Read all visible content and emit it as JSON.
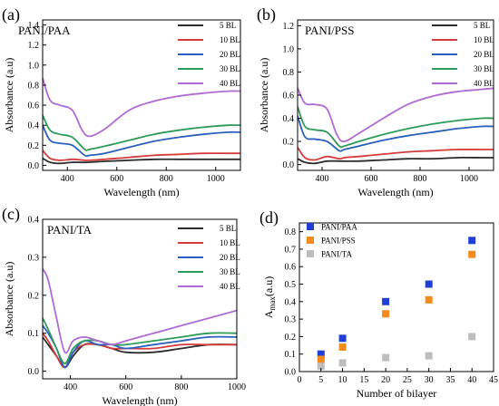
{
  "chart_data": [
    {
      "id": "a",
      "panel_label": "(a)",
      "title": "PANI/PAA",
      "type": "line",
      "xlabel": "Wavelength (nm)",
      "ylabel": "Absorbance (a.u)",
      "xlim": [
        300,
        1100
      ],
      "ylim": [
        -0.05,
        1.45
      ],
      "xticks": [
        400,
        600,
        800,
        1000
      ],
      "yticks": [
        0.0,
        0.2,
        0.4,
        0.6,
        0.8,
        1.0,
        1.2,
        1.4
      ],
      "ytick_labels": [
        "0.0",
        "0.2",
        "0.4",
        "0.6",
        "0.8",
        "1.0",
        "1.2",
        "1.4"
      ],
      "legend_position": "top-right",
      "series": [
        {
          "name": "5 BL",
          "color": "#2b2b2b",
          "x": [
            300,
            330,
            370,
            420,
            480,
            550,
            650,
            750,
            850,
            950,
            1050,
            1100
          ],
          "y": [
            0.07,
            0.03,
            0.02,
            0.03,
            0.03,
            0.04,
            0.05,
            0.06,
            0.06,
            0.06,
            0.06,
            0.06
          ]
        },
        {
          "name": "10 BL",
          "color": "#d63b3b",
          "x": [
            300,
            330,
            370,
            420,
            470,
            490,
            550,
            650,
            750,
            850,
            950,
            1050,
            1100
          ],
          "y": [
            0.15,
            0.07,
            0.05,
            0.06,
            0.05,
            0.05,
            0.06,
            0.08,
            0.1,
            0.11,
            0.12,
            0.12,
            0.12
          ]
        },
        {
          "name": "20 BL",
          "color": "#2a5fbf",
          "x": [
            300,
            330,
            370,
            420,
            470,
            490,
            550,
            650,
            750,
            850,
            950,
            1050,
            1100
          ],
          "y": [
            0.4,
            0.25,
            0.22,
            0.2,
            0.1,
            0.1,
            0.12,
            0.18,
            0.24,
            0.28,
            0.31,
            0.33,
            0.33
          ]
        },
        {
          "name": "30 BL",
          "color": "#2e9a5a",
          "x": [
            300,
            330,
            370,
            420,
            470,
            490,
            550,
            650,
            750,
            850,
            950,
            1050,
            1100
          ],
          "y": [
            0.5,
            0.35,
            0.31,
            0.28,
            0.16,
            0.16,
            0.19,
            0.25,
            0.31,
            0.35,
            0.38,
            0.4,
            0.4
          ]
        },
        {
          "name": "40 BL",
          "color": "#b06ad6",
          "x": [
            300,
            330,
            370,
            420,
            460,
            490,
            550,
            650,
            750,
            850,
            950,
            1050,
            1100
          ],
          "y": [
            0.87,
            0.65,
            0.6,
            0.55,
            0.35,
            0.29,
            0.36,
            0.55,
            0.64,
            0.69,
            0.72,
            0.74,
            0.74
          ]
        }
      ]
    },
    {
      "id": "b",
      "panel_label": "(b)",
      "title": "PANI/PSS",
      "type": "line",
      "xlabel": "Wavelength (nm)",
      "ylabel": "Absorbance (a.u)",
      "xlim": [
        300,
        1100
      ],
      "ylim": [
        -0.05,
        1.25
      ],
      "xticks": [
        400,
        600,
        800,
        1000
      ],
      "yticks": [
        0.0,
        0.2,
        0.4,
        0.6,
        0.8,
        1.0,
        1.2
      ],
      "ytick_labels": [
        "0.0",
        "0.2",
        "0.4",
        "0.6",
        "0.8",
        "1.0",
        "1.2"
      ],
      "legend_position": "top-right",
      "series": [
        {
          "name": "5 BL",
          "color": "#2b2b2b",
          "x": [
            300,
            330,
            370,
            420,
            480,
            550,
            650,
            750,
            850,
            950,
            1050,
            1100
          ],
          "y": [
            0.05,
            0.02,
            0.01,
            0.03,
            0.03,
            0.03,
            0.04,
            0.05,
            0.05,
            0.06,
            0.06,
            0.06
          ]
        },
        {
          "name": "10 BL",
          "color": "#d63b3b",
          "x": [
            300,
            330,
            370,
            420,
            470,
            490,
            550,
            650,
            750,
            850,
            950,
            1050,
            1100
          ],
          "y": [
            0.15,
            0.06,
            0.04,
            0.07,
            0.05,
            0.06,
            0.07,
            0.09,
            0.11,
            0.12,
            0.13,
            0.13,
            0.13
          ]
        },
        {
          "name": "20 BL",
          "color": "#2a5fbf",
          "x": [
            300,
            330,
            370,
            420,
            470,
            490,
            550,
            650,
            750,
            850,
            950,
            1050,
            1100
          ],
          "y": [
            0.42,
            0.24,
            0.22,
            0.2,
            0.12,
            0.13,
            0.16,
            0.21,
            0.25,
            0.28,
            0.31,
            0.33,
            0.33
          ]
        },
        {
          "name": "30 BL",
          "color": "#2e9a5a",
          "x": [
            300,
            330,
            370,
            420,
            470,
            490,
            550,
            650,
            750,
            850,
            950,
            1050,
            1100
          ],
          "y": [
            0.5,
            0.33,
            0.3,
            0.28,
            0.16,
            0.16,
            0.2,
            0.26,
            0.31,
            0.35,
            0.38,
            0.4,
            0.4
          ]
        },
        {
          "name": "40 BL",
          "color": "#b06ad6",
          "x": [
            300,
            330,
            370,
            420,
            460,
            490,
            550,
            650,
            750,
            850,
            950,
            1050,
            1100
          ],
          "y": [
            0.66,
            0.53,
            0.52,
            0.48,
            0.26,
            0.2,
            0.27,
            0.4,
            0.52,
            0.59,
            0.63,
            0.65,
            0.66
          ]
        }
      ]
    },
    {
      "id": "c",
      "panel_label": "(c)",
      "title": "PANI/TA",
      "type": "line",
      "xlabel": "Wavelength (nm)",
      "ylabel": "Absorbance (a.u)",
      "xlim": [
        300,
        1000
      ],
      "ylim": [
        -0.02,
        0.4
      ],
      "xticks": [
        400,
        600,
        800,
        1000
      ],
      "yticks": [
        0.0,
        0.1,
        0.2,
        0.3,
        0.4
      ],
      "ytick_labels": [
        "0.0",
        "0.1",
        "0.2",
        "0.3",
        "0.4"
      ],
      "legend_position": "top-right",
      "series": [
        {
          "name": "5 BL",
          "color": "#2b2b2b",
          "x": [
            300,
            320,
            350,
            380,
            410,
            450,
            500,
            550,
            600,
            700,
            800,
            900,
            1000
          ],
          "y": [
            0.09,
            0.07,
            0.04,
            0.01,
            0.04,
            0.07,
            0.07,
            0.06,
            0.05,
            0.05,
            0.06,
            0.07,
            0.07
          ]
        },
        {
          "name": "10 BL",
          "color": "#d63b3b",
          "x": [
            300,
            320,
            350,
            380,
            410,
            450,
            500,
            550,
            600,
            700,
            800,
            900,
            1000
          ],
          "y": [
            0.1,
            0.08,
            0.04,
            0.01,
            0.05,
            0.07,
            0.07,
            0.06,
            0.06,
            0.06,
            0.07,
            0.07,
            0.07
          ]
        },
        {
          "name": "20 BL",
          "color": "#2a5fbf",
          "x": [
            300,
            320,
            350,
            380,
            410,
            450,
            500,
            550,
            600,
            700,
            800,
            900,
            1000
          ],
          "y": [
            0.12,
            0.1,
            0.06,
            0.01,
            0.05,
            0.08,
            0.07,
            0.07,
            0.06,
            0.07,
            0.08,
            0.09,
            0.09
          ]
        },
        {
          "name": "30 BL",
          "color": "#2e9a5a",
          "x": [
            300,
            320,
            350,
            380,
            410,
            450,
            500,
            550,
            600,
            700,
            800,
            900,
            1000
          ],
          "y": [
            0.14,
            0.11,
            0.06,
            0.02,
            0.06,
            0.08,
            0.08,
            0.07,
            0.07,
            0.08,
            0.09,
            0.1,
            0.1
          ]
        },
        {
          "name": "40 BL",
          "color": "#b06ad6",
          "x": [
            300,
            320,
            350,
            380,
            410,
            450,
            500,
            550,
            600,
            700,
            800,
            900,
            1000
          ],
          "y": [
            0.27,
            0.24,
            0.14,
            0.05,
            0.08,
            0.09,
            0.08,
            0.07,
            0.08,
            0.1,
            0.12,
            0.14,
            0.16
          ]
        }
      ]
    },
    {
      "id": "d",
      "panel_label": "(d)",
      "title": "",
      "type": "scatter",
      "xlabel": "Number of bilayer",
      "ylabel_main": "A",
      "ylabel_sub": "max",
      "ylabel_suffix": "(a.u)",
      "xlim": [
        0,
        45
      ],
      "ylim": [
        0,
        0.85
      ],
      "xticks": [
        0,
        5,
        10,
        15,
        20,
        25,
        30,
        35,
        40,
        45
      ],
      "yticks": [
        0.0,
        0.1,
        0.2,
        0.3,
        0.4,
        0.5,
        0.6,
        0.7,
        0.8
      ],
      "ytick_labels": [
        "0.0",
        "0.1",
        "0.2",
        "0.3",
        "0.4",
        "0.5",
        "0.6",
        "0.7",
        "0.8"
      ],
      "legend_position": "top-left",
      "series": [
        {
          "name": "PANI/PAA",
          "color": "#1f3fd6",
          "x": [
            5,
            10,
            20,
            30,
            40
          ],
          "y": [
            0.1,
            0.19,
            0.4,
            0.5,
            0.75
          ]
        },
        {
          "name": "PANI/PSS",
          "color": "#f28a1e",
          "x": [
            5,
            10,
            20,
            30,
            40
          ],
          "y": [
            0.07,
            0.14,
            0.33,
            0.41,
            0.67
          ]
        },
        {
          "name": "PANI/TA",
          "color": "#bdbdbd",
          "x": [
            5,
            10,
            20,
            30,
            40
          ],
          "y": [
            0.03,
            0.05,
            0.08,
            0.09,
            0.2
          ]
        }
      ]
    }
  ]
}
